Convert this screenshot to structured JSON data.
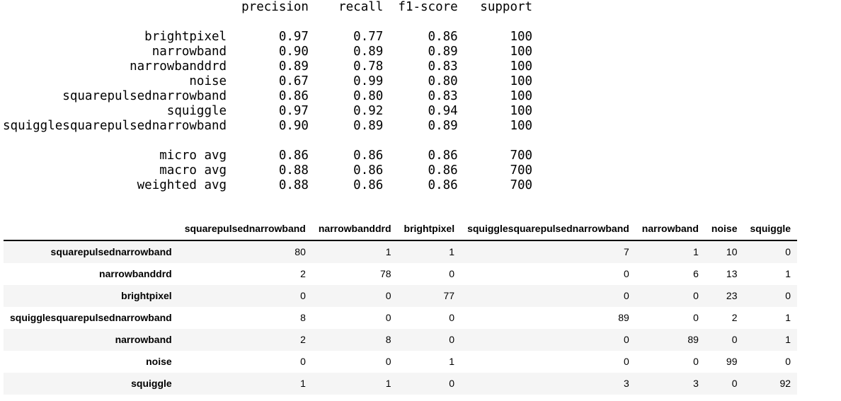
{
  "colors": {
    "background": "#ffffff",
    "stripe": "#f5f5f5",
    "header_border": "#000000",
    "text": "#000000"
  },
  "chart_data": [
    {
      "type": "table",
      "name": "classification_report",
      "columns": [
        "precision",
        "recall",
        "f1-score",
        "support"
      ],
      "rows": [
        {
          "label": "brightpixel",
          "values": [
            "0.97",
            "0.77",
            "0.86",
            "100"
          ]
        },
        {
          "label": "narrowband",
          "values": [
            "0.90",
            "0.89",
            "0.89",
            "100"
          ]
        },
        {
          "label": "narrowbanddrd",
          "values": [
            "0.89",
            "0.78",
            "0.83",
            "100"
          ]
        },
        {
          "label": "noise",
          "values": [
            "0.67",
            "0.99",
            "0.80",
            "100"
          ]
        },
        {
          "label": "squarepulsednarrowband",
          "values": [
            "0.86",
            "0.80",
            "0.83",
            "100"
          ]
        },
        {
          "label": "squiggle",
          "values": [
            "0.97",
            "0.92",
            "0.94",
            "100"
          ]
        },
        {
          "label": "squigglesquarepulsednarrowband",
          "values": [
            "0.90",
            "0.89",
            "0.89",
            "100"
          ]
        }
      ],
      "avg_rows": [
        {
          "label": "micro avg",
          "values": [
            "0.86",
            "0.86",
            "0.86",
            "700"
          ]
        },
        {
          "label": "macro avg",
          "values": [
            "0.88",
            "0.86",
            "0.86",
            "700"
          ]
        },
        {
          "label": "weighted avg",
          "values": [
            "0.88",
            "0.86",
            "0.86",
            "700"
          ]
        }
      ]
    },
    {
      "type": "table",
      "name": "confusion_matrix",
      "columns": [
        "squarepulsednarrowband",
        "narrowbanddrd",
        "brightpixel",
        "squigglesquarepulsednarrowband",
        "narrowband",
        "noise",
        "squiggle"
      ],
      "rows": [
        {
          "label": "squarepulsednarrowband",
          "values": [
            80,
            1,
            1,
            7,
            1,
            10,
            0
          ]
        },
        {
          "label": "narrowbanddrd",
          "values": [
            2,
            78,
            0,
            0,
            6,
            13,
            1
          ]
        },
        {
          "label": "brightpixel",
          "values": [
            0,
            0,
            77,
            0,
            0,
            23,
            0
          ]
        },
        {
          "label": "squigglesquarepulsednarrowband",
          "values": [
            8,
            0,
            0,
            89,
            0,
            2,
            1
          ]
        },
        {
          "label": "narrowband",
          "values": [
            2,
            8,
            0,
            0,
            89,
            0,
            1
          ]
        },
        {
          "label": "noise",
          "values": [
            0,
            0,
            1,
            0,
            0,
            99,
            0
          ]
        },
        {
          "label": "squiggle",
          "values": [
            1,
            1,
            0,
            3,
            3,
            0,
            92
          ]
        }
      ]
    }
  ]
}
